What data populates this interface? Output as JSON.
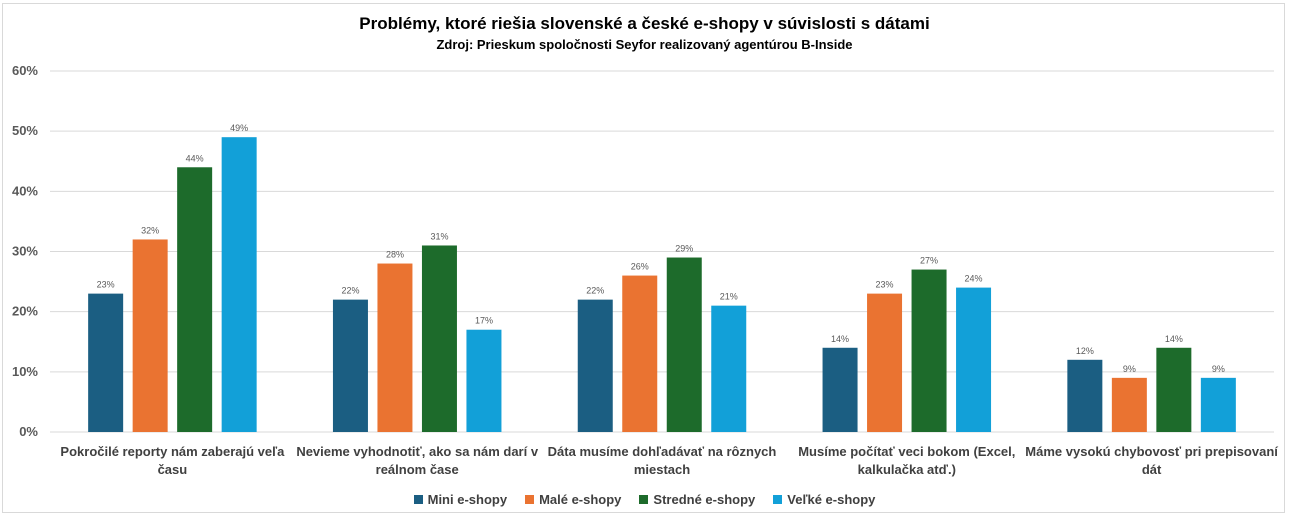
{
  "chart_data": {
    "type": "bar",
    "title": "Problémy, ktoré riešia slovenské a české e-shopy v súvislosti s dátami",
    "subtitle": "Zdroj: Prieskum spoločnosti Seyfor realizovaný agentúrou B-Inside",
    "categories": [
      [
        "Pokročilé reporty nám zaberajú veľa",
        "času"
      ],
      [
        "Nevieme vyhodnotiť, ako sa nám darí v",
        "reálnom čase"
      ],
      [
        "Dáta musíme dohľadávať na rôznych",
        "miestach"
      ],
      [
        "Musíme počítať veci bokom (Excel,",
        "kalkulačka atď.)"
      ],
      [
        "Máme vysokú chybovosť pri prepisovaní",
        "dát"
      ]
    ],
    "series": [
      {
        "name": "Mini e-shopy",
        "color": "#1b5e82",
        "values": [
          23,
          22,
          22,
          14,
          12
        ]
      },
      {
        "name": "Malé e-shopy",
        "color": "#ea7331",
        "values": [
          32,
          28,
          26,
          23,
          9
        ]
      },
      {
        "name": "Stredné e-shopy",
        "color": "#1d6b2b",
        "values": [
          44,
          31,
          29,
          27,
          14
        ]
      },
      {
        "name": "Veľké e-shopy",
        "color": "#12a0d8",
        "values": [
          49,
          17,
          21,
          24,
          9
        ]
      }
    ],
    "ylim": [
      0,
      60
    ],
    "yticks": [
      "0%",
      "10%",
      "20%",
      "30%",
      "40%",
      "50%",
      "60%"
    ],
    "value_suffix": "%",
    "legend_position": "bottom"
  }
}
